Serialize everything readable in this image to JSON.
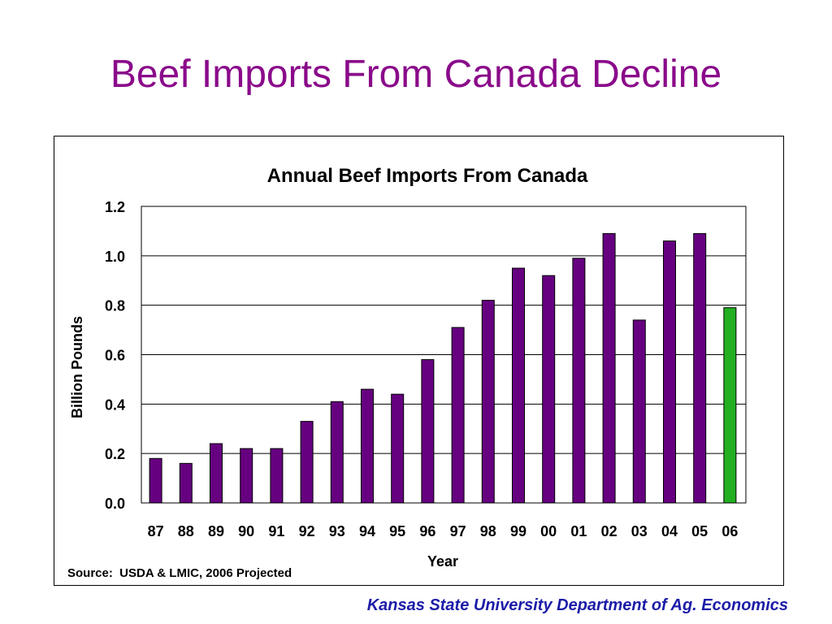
{
  "slide": {
    "title": "Beef Imports From Canada Decline",
    "footer": "Kansas State University Department of Ag. Economics"
  },
  "source_note": "Source:  USDA & LMIC, 2006 Projected",
  "colors": {
    "title": "#8a0a8a",
    "footer": "#1c1ca8",
    "bar_actual": "#660080",
    "bar_projected": "#22b022"
  },
  "chart_data": {
    "type": "bar",
    "title": "Annual Beef Imports From Canada",
    "xlabel": "Year",
    "ylabel": "Billion Pounds",
    "categories": [
      "87",
      "88",
      "89",
      "90",
      "91",
      "92",
      "93",
      "94",
      "95",
      "96",
      "97",
      "98",
      "99",
      "00",
      "01",
      "02",
      "03",
      "04",
      "05",
      "06"
    ],
    "values": [
      0.18,
      0.16,
      0.24,
      0.22,
      0.22,
      0.33,
      0.41,
      0.46,
      0.44,
      0.58,
      0.71,
      0.82,
      0.95,
      0.92,
      0.99,
      1.09,
      0.74,
      1.06,
      1.09,
      0.79
    ],
    "projected": [
      false,
      false,
      false,
      false,
      false,
      false,
      false,
      false,
      false,
      false,
      false,
      false,
      false,
      false,
      false,
      false,
      false,
      false,
      false,
      true
    ],
    "ylim": [
      0,
      1.2
    ],
    "yticks": [
      "0.0",
      "0.2",
      "0.4",
      "0.6",
      "0.8",
      "1.0",
      "1.2"
    ],
    "grid": true,
    "legend": "none"
  }
}
